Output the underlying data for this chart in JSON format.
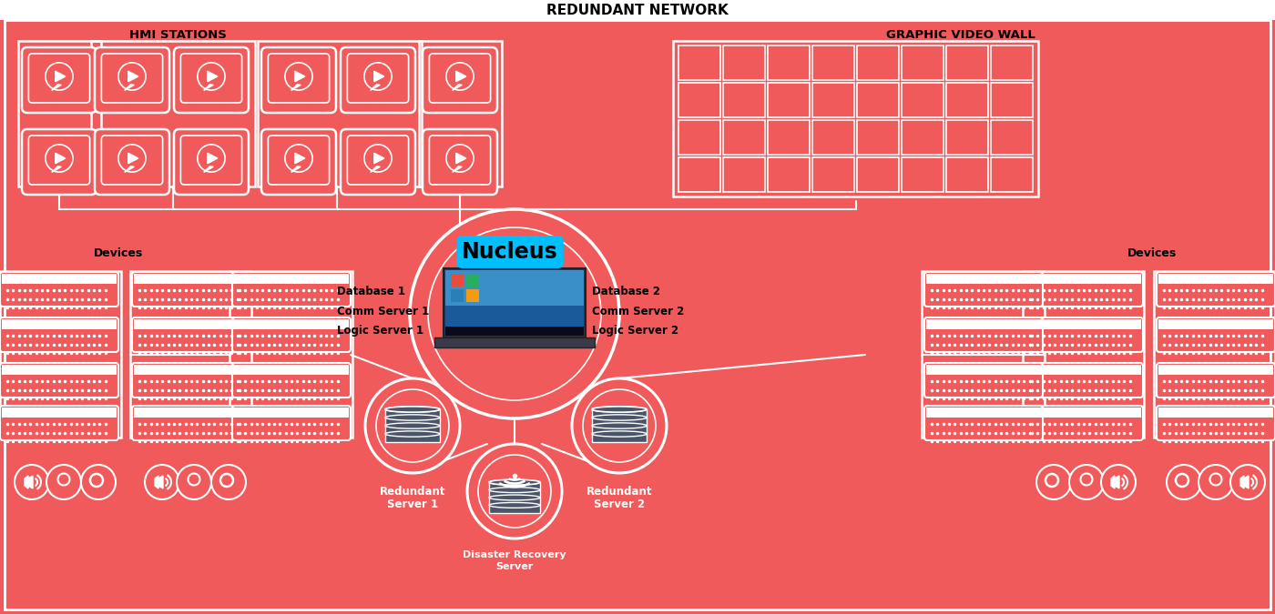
{
  "bg_color": "#F05A5A",
  "white_color": "#FFFFFF",
  "dark_color": "#4A5568",
  "nucleus_bg": "#00BFFF",
  "title": "REDUNDANT NETWORK",
  "hmi_label": "HMI STATIONS",
  "gvw_label": "GRAPHIC VIDEO WALL",
  "nucleus_label": "Nucleus",
  "db1_lines": [
    "Database 1",
    "Comm Server 1",
    "Logic Server 1"
  ],
  "db2_lines": [
    "Database 2",
    "Comm Server 2",
    "Logic Server 2"
  ],
  "dev_label": "Devices",
  "s1_label": [
    "Redundant",
    "Server 1"
  ],
  "s2_label": [
    "Redundant",
    "Server 2"
  ],
  "dr_label": [
    "Disaster Recovery",
    "Server"
  ],
  "laptop_screen_top": "#3A8FC8",
  "laptop_screen_bottom": "#1A5A9A",
  "laptop_taskbar": "#111122",
  "laptop_base": "#333344",
  "tile_colors": [
    "#E74C3C",
    "#27AE60",
    "#2980B9",
    "#F39C12"
  ]
}
